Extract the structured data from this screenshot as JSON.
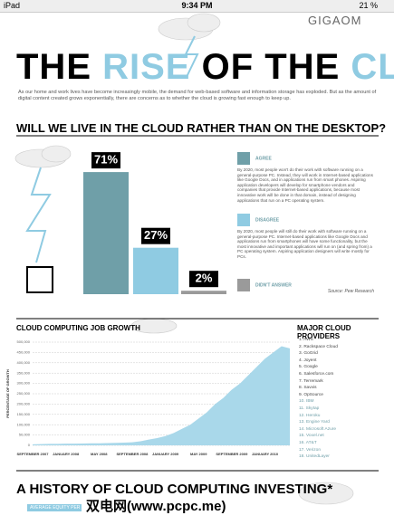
{
  "status_bar": {
    "device": "iPad",
    "time": "9:34 PM",
    "battery": "21 %"
  },
  "header": {
    "logo": "GIGAOM",
    "title_parts": [
      "THE",
      "RISE",
      "OF THE",
      "CLOUD"
    ],
    "intro": "As our home and work lives have become increasingly mobile, the demand for web-based software and information storage has exploded. But as the amount of digital content created grows exponentially, there are concerns as to whether the cloud is growing fast enough to keep up."
  },
  "question": "WILL WE LIVE IN THE CLOUD RATHER THAN ON THE DESKTOP?",
  "chart_data": [
    {
      "type": "bar",
      "categories": [
        "AGREE",
        "DISAGREE",
        "DIDN'T ANSWER"
      ],
      "values": [
        71,
        27,
        2
      ],
      "value_labels": [
        "71%",
        "27%",
        "2%"
      ],
      "colors": [
        "#6f9fa8",
        "#8fcbe2",
        "#9a9a9a"
      ],
      "descriptions": [
        "By 2020, most people won't do their work with software running on a general-purpose PC. Instead, they will work in Internet-based applications like Google Docs, and in applications run from smart phones. Aspiring application developers will develop for smartphone vendors and companies that provide Internet-based applications, because most innovative work will be done in that domain, instead of designing applications that run on a PC operating system.",
        "By 2020, most people will still do their work with software running on a general-purpose PC. Internet-based applications like Google Docs and applications run from smartphones will have some functionality, but the most innovative and important applications will run on (and spring from) a PC operating system. Aspiring application designers will write mostly for PCs.",
        null
      ],
      "source": "Source: Pew Research"
    },
    {
      "type": "area",
      "title": "CLOUD COMPUTING JOB GROWTH",
      "y_label": "PERCENTAGE OF GROWTH",
      "color": "#a9d8ea",
      "grid": true,
      "categories": [
        "SEPTEMBER 2007",
        null,
        null,
        null,
        "JANUARY 2008",
        null,
        null,
        null,
        "MAY 2008",
        null,
        null,
        null,
        "SEPTEMBER 2008",
        null,
        null,
        null,
        "JANUARY 2009",
        null,
        null,
        null,
        "MAY 2009",
        null,
        null,
        null,
        "SEPTEMBER 2009",
        null,
        null,
        null,
        "JANUARY 2010",
        null,
        null,
        null
      ],
      "values": [
        5000,
        6000,
        7000,
        7000,
        8000,
        8000,
        9000,
        10000,
        10000,
        11000,
        12000,
        13000,
        15000,
        20000,
        28000,
        35000,
        45000,
        60000,
        80000,
        100000,
        130000,
        160000,
        200000,
        230000,
        270000,
        300000,
        340000,
        380000,
        420000,
        450000,
        480000,
        470000
      ],
      "ylim": [
        0,
        500000
      ],
      "yticks": [
        0,
        {
          "value": 50000,
          "label": "50,000"
        },
        {
          "value": 100000,
          "label": "100,000"
        },
        {
          "value": 150000,
          "label": "150,000"
        },
        {
          "value": 200000,
          "label": "200,000"
        },
        {
          "value": 250000,
          "label": "250,000"
        },
        {
          "value": 300000,
          "label": "300,000"
        },
        {
          "value": 350000,
          "label": "350,000"
        },
        {
          "value": 400000,
          "label": "400,000"
        },
        {
          "value": 450000,
          "label": "450,000"
        },
        {
          "value": 500000,
          "label": "500,000"
        }
      ]
    }
  ],
  "providers": {
    "title": "MAJOR CLOUD PROVIDERS",
    "items": [
      "1. AWS",
      "2. Rackspace Cloud",
      "3. GoGrid",
      "4. Joyent",
      "5. Google",
      "6. Salesforce.com",
      "7. Terremark",
      "8. Savvis",
      "9. OpSource",
      "10. IBM",
      "11. Skytap",
      "12. Heroku",
      "13. Engine Yard",
      "14. Microsoft Azure",
      "15. Voxel.net",
      "16. AT&T",
      "17. Verizon",
      "18. UnitedLayer"
    ]
  },
  "history": {
    "title": "A HISTORY OF CLOUD COMPUTING INVESTING*",
    "legend": "AVERAGE EQUITY PER DEAL"
  },
  "watermark": "双电网(www.pcpc.me)"
}
